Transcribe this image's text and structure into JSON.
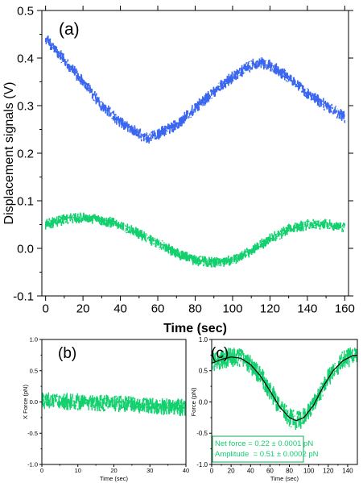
{
  "colors": {
    "blue": "#3b67f0",
    "green": "#13d06e",
    "fit": "#000000",
    "box": "#13a85a",
    "axis": "#000000"
  },
  "chart_data": [
    {
      "id": "a",
      "type": "line",
      "panel_label": "(a)",
      "xlabel": "Time (sec)",
      "ylabel": "Displacement signals (V)",
      "xlim": [
        -2,
        162
      ],
      "ylim": [
        -0.1,
        0.5
      ],
      "xticks": [
        0,
        20,
        40,
        60,
        80,
        100,
        120,
        140,
        160
      ],
      "yticks": [
        -0.1,
        0.0,
        0.1,
        0.2,
        0.3,
        0.4,
        0.5
      ],
      "ytick_labels": [
        "-0.1",
        "0.0",
        "0.1",
        "0.2",
        "0.3",
        "0.4",
        "0.5"
      ],
      "series": [
        {
          "color": "blue",
          "noise_halfwidth": 0.013,
          "x": [
            0,
            10,
            20,
            30,
            40,
            50,
            55,
            60,
            70,
            80,
            90,
            100,
            110,
            115,
            120,
            130,
            140,
            150,
            160
          ],
          "y": [
            0.44,
            0.395,
            0.35,
            0.3,
            0.265,
            0.24,
            0.23,
            0.24,
            0.26,
            0.295,
            0.33,
            0.36,
            0.385,
            0.39,
            0.385,
            0.36,
            0.325,
            0.3,
            0.275
          ]
        },
        {
          "color": "green",
          "noise_halfwidth": 0.012,
          "x": [
            0,
            10,
            20,
            30,
            40,
            50,
            60,
            70,
            80,
            90,
            100,
            110,
            120,
            130,
            140,
            150,
            160
          ],
          "y": [
            0.05,
            0.06,
            0.065,
            0.06,
            0.048,
            0.03,
            0.01,
            -0.01,
            -0.025,
            -0.03,
            -0.025,
            -0.005,
            0.02,
            0.04,
            0.05,
            0.05,
            0.045
          ]
        }
      ]
    },
    {
      "id": "b",
      "type": "line",
      "panel_label": "(b)",
      "xlabel": "Time (sec)",
      "ylabel": "X Force (pN)",
      "xlim": [
        0,
        40
      ],
      "ylim": [
        -1.0,
        1.0
      ],
      "xticks": [
        0,
        10,
        20,
        30,
        40
      ],
      "yticks": [
        -1.0,
        -0.5,
        0.0,
        0.5,
        1.0
      ],
      "ytick_labels": [
        "-1.0",
        "-0.5",
        "0.0",
        "0.5",
        "1.0"
      ],
      "series": [
        {
          "color": "green",
          "noise_halfwidth": 0.14,
          "x": [
            0,
            10,
            20,
            30,
            40
          ],
          "y": [
            0.02,
            0.0,
            -0.03,
            -0.06,
            -0.09
          ]
        }
      ]
    },
    {
      "id": "c",
      "type": "line",
      "panel_label": "(c)",
      "xlabel": "Time (sec)",
      "ylabel": "Force (pN)",
      "xlim": [
        0,
        150
      ],
      "ylim": [
        -1.0,
        1.0
      ],
      "xticks": [
        0,
        20,
        40,
        60,
        80,
        100,
        120,
        140
      ],
      "yticks": [
        -1.0,
        -0.5,
        0.0,
        0.5,
        1.0
      ],
      "ytick_labels": [
        "-1.0",
        "-0.5",
        "0.0",
        "0.5",
        "1.0"
      ],
      "series": [
        {
          "color": "green",
          "noise_halfwidth": 0.16,
          "x": [
            0,
            10,
            20,
            30,
            40,
            50,
            60,
            70,
            80,
            87,
            95,
            105,
            115,
            125,
            135,
            145,
            150
          ],
          "y": [
            0.62,
            0.68,
            0.72,
            0.7,
            0.6,
            0.42,
            0.18,
            -0.08,
            -0.25,
            -0.3,
            -0.25,
            -0.05,
            0.25,
            0.5,
            0.66,
            0.74,
            0.75
          ]
        }
      ],
      "fit": {
        "color": "fit",
        "x": [
          0,
          10,
          20,
          30,
          40,
          50,
          60,
          70,
          80,
          87,
          95,
          105,
          115,
          125,
          135,
          145,
          150
        ],
        "y": [
          0.62,
          0.68,
          0.72,
          0.7,
          0.6,
          0.42,
          0.18,
          -0.08,
          -0.25,
          -0.3,
          -0.25,
          -0.05,
          0.25,
          0.5,
          0.66,
          0.74,
          0.75
        ]
      },
      "annotation": [
        "Net force = 0.22 ± 0.0001 pN",
        "Amplitude  = 0.51 ± 0.0002 pN"
      ]
    }
  ]
}
